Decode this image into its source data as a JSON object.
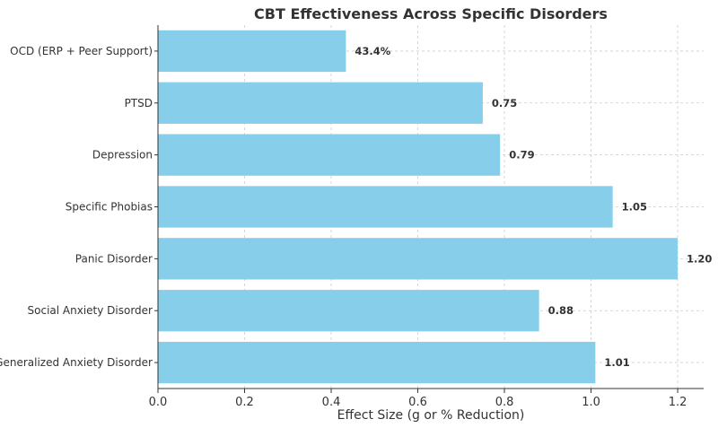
{
  "chart_data": {
    "type": "bar",
    "orientation": "horizontal",
    "title": "CBT Effectiveness Across Specific Disorders",
    "xlabel": "Effect Size (g or % Reduction)",
    "ylabel": "",
    "xlim": [
      0,
      1.26
    ],
    "xticks": [
      0.0,
      0.2,
      0.4,
      0.6,
      0.8,
      1.0,
      1.2
    ],
    "xtick_labels": [
      "0.0",
      "0.2",
      "0.4",
      "0.6",
      "0.8",
      "1.0",
      "1.2"
    ],
    "grid": true,
    "bar_color": "#87CEEB",
    "categories": [
      "Generalized Anxiety Disorder",
      "Social Anxiety Disorder",
      "Panic Disorder",
      "Specific Phobias",
      "Depression",
      "PTSD",
      "OCD (ERP + Peer Support)"
    ],
    "values": [
      1.01,
      0.88,
      1.2,
      1.05,
      0.79,
      0.75,
      0.434
    ],
    "data_labels": [
      "1.01",
      "0.88",
      "1.20",
      "1.05",
      "0.79",
      "0.75",
      "43.4%"
    ]
  }
}
